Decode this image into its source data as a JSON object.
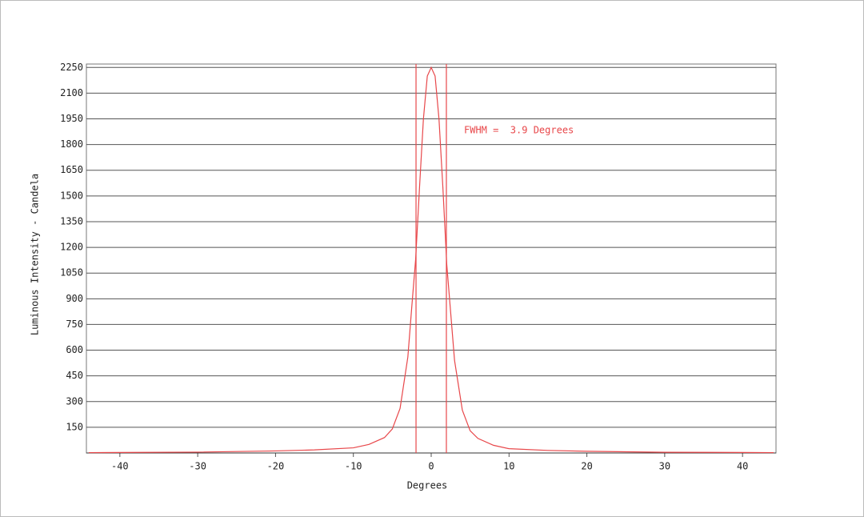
{
  "chart_data": {
    "type": "line",
    "annotation": "FWHM =  3.9 Degrees",
    "x_label": "Degrees",
    "y_label": "Luminous Intensity - Candela",
    "x": [
      -44,
      -40,
      -30,
      -20,
      -15,
      -10,
      -8,
      -6,
      -5,
      -4,
      -3,
      -2.5,
      -2,
      -1.5,
      -1,
      -0.5,
      0,
      0.5,
      1,
      1.5,
      2,
      2.5,
      3,
      4,
      5,
      6,
      8,
      10,
      15,
      20,
      30,
      40,
      44
    ],
    "series": [
      {
        "name": "Intensity",
        "color": "#e8474a",
        "values": [
          2,
          3,
          5,
          12,
          18,
          30,
          50,
          90,
          140,
          260,
          560,
          850,
          1130,
          1550,
          1950,
          2200,
          2250,
          2200,
          1950,
          1550,
          1100,
          820,
          540,
          250,
          130,
          85,
          45,
          25,
          15,
          10,
          4,
          3,
          2
        ]
      }
    ],
    "vlines": [
      -1.95,
      1.95
    ],
    "xlim": [
      -44.3,
      44.3
    ],
    "xticks": [
      -40,
      -30,
      -20,
      -10,
      0,
      10,
      20,
      30,
      40
    ],
    "ylim": [
      0,
      2270
    ],
    "yticks": [
      150,
      300,
      450,
      600,
      750,
      900,
      1050,
      1200,
      1350,
      1500,
      1650,
      1800,
      1950,
      2100,
      2250
    ],
    "grid": true
  }
}
